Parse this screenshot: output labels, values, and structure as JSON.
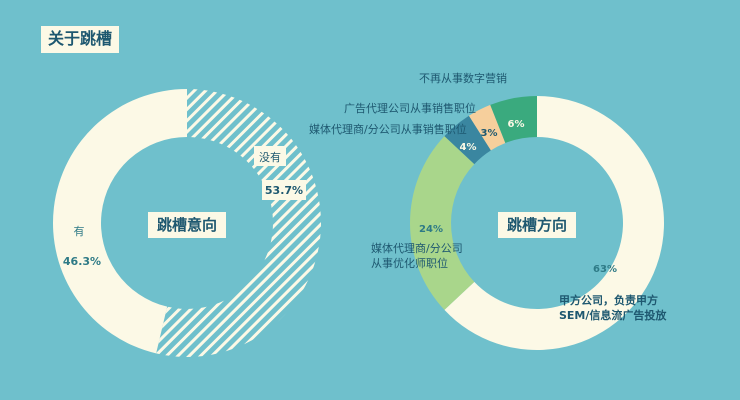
{
  "page_title": "关于跳槽",
  "colors": {
    "background": "#6fc0cc",
    "cream": "#fcf9e6",
    "dark_text": "#1e5870",
    "teal_text": "#2e7a86",
    "green": "#3aaa7e",
    "peach": "#f6cf9c",
    "steel": "#3a86a0",
    "light_green": "#a9d68b",
    "hatch": "#fcf9e6"
  },
  "chart_data": [
    {
      "type": "pie",
      "style": "donut",
      "center_label": "跳槽意向",
      "slices": [
        {
          "name": "没有",
          "value": 53.7,
          "value_label": "53.7%",
          "color": "#6fc0cc",
          "pattern": "hatch"
        },
        {
          "name": "有",
          "value": 46.3,
          "value_label": "46.3%",
          "color": "#fcf9e6"
        }
      ]
    },
    {
      "type": "pie",
      "style": "donut",
      "center_label": "跳槽方向",
      "slices": [
        {
          "name": "甲方公司，负责甲方SEM/信息流广告投放",
          "value": 63,
          "value_label": "63%",
          "color": "#fcf9e6"
        },
        {
          "name": "媒体代理商/分公司从事优化师职位",
          "value": 24,
          "value_label": "24%",
          "color": "#a9d68b"
        },
        {
          "name": "媒体代理商/分公司从事销售职位",
          "value": 4,
          "value_label": "4%",
          "color": "#3a86a0"
        },
        {
          "name": "广告代理公司从事销售职位",
          "value": 3,
          "value_label": "3%",
          "color": "#f6cf9c"
        },
        {
          "name": "不再从事数字营销",
          "value": 6,
          "value_label": "6%",
          "color": "#3aaa7e"
        }
      ]
    }
  ]
}
